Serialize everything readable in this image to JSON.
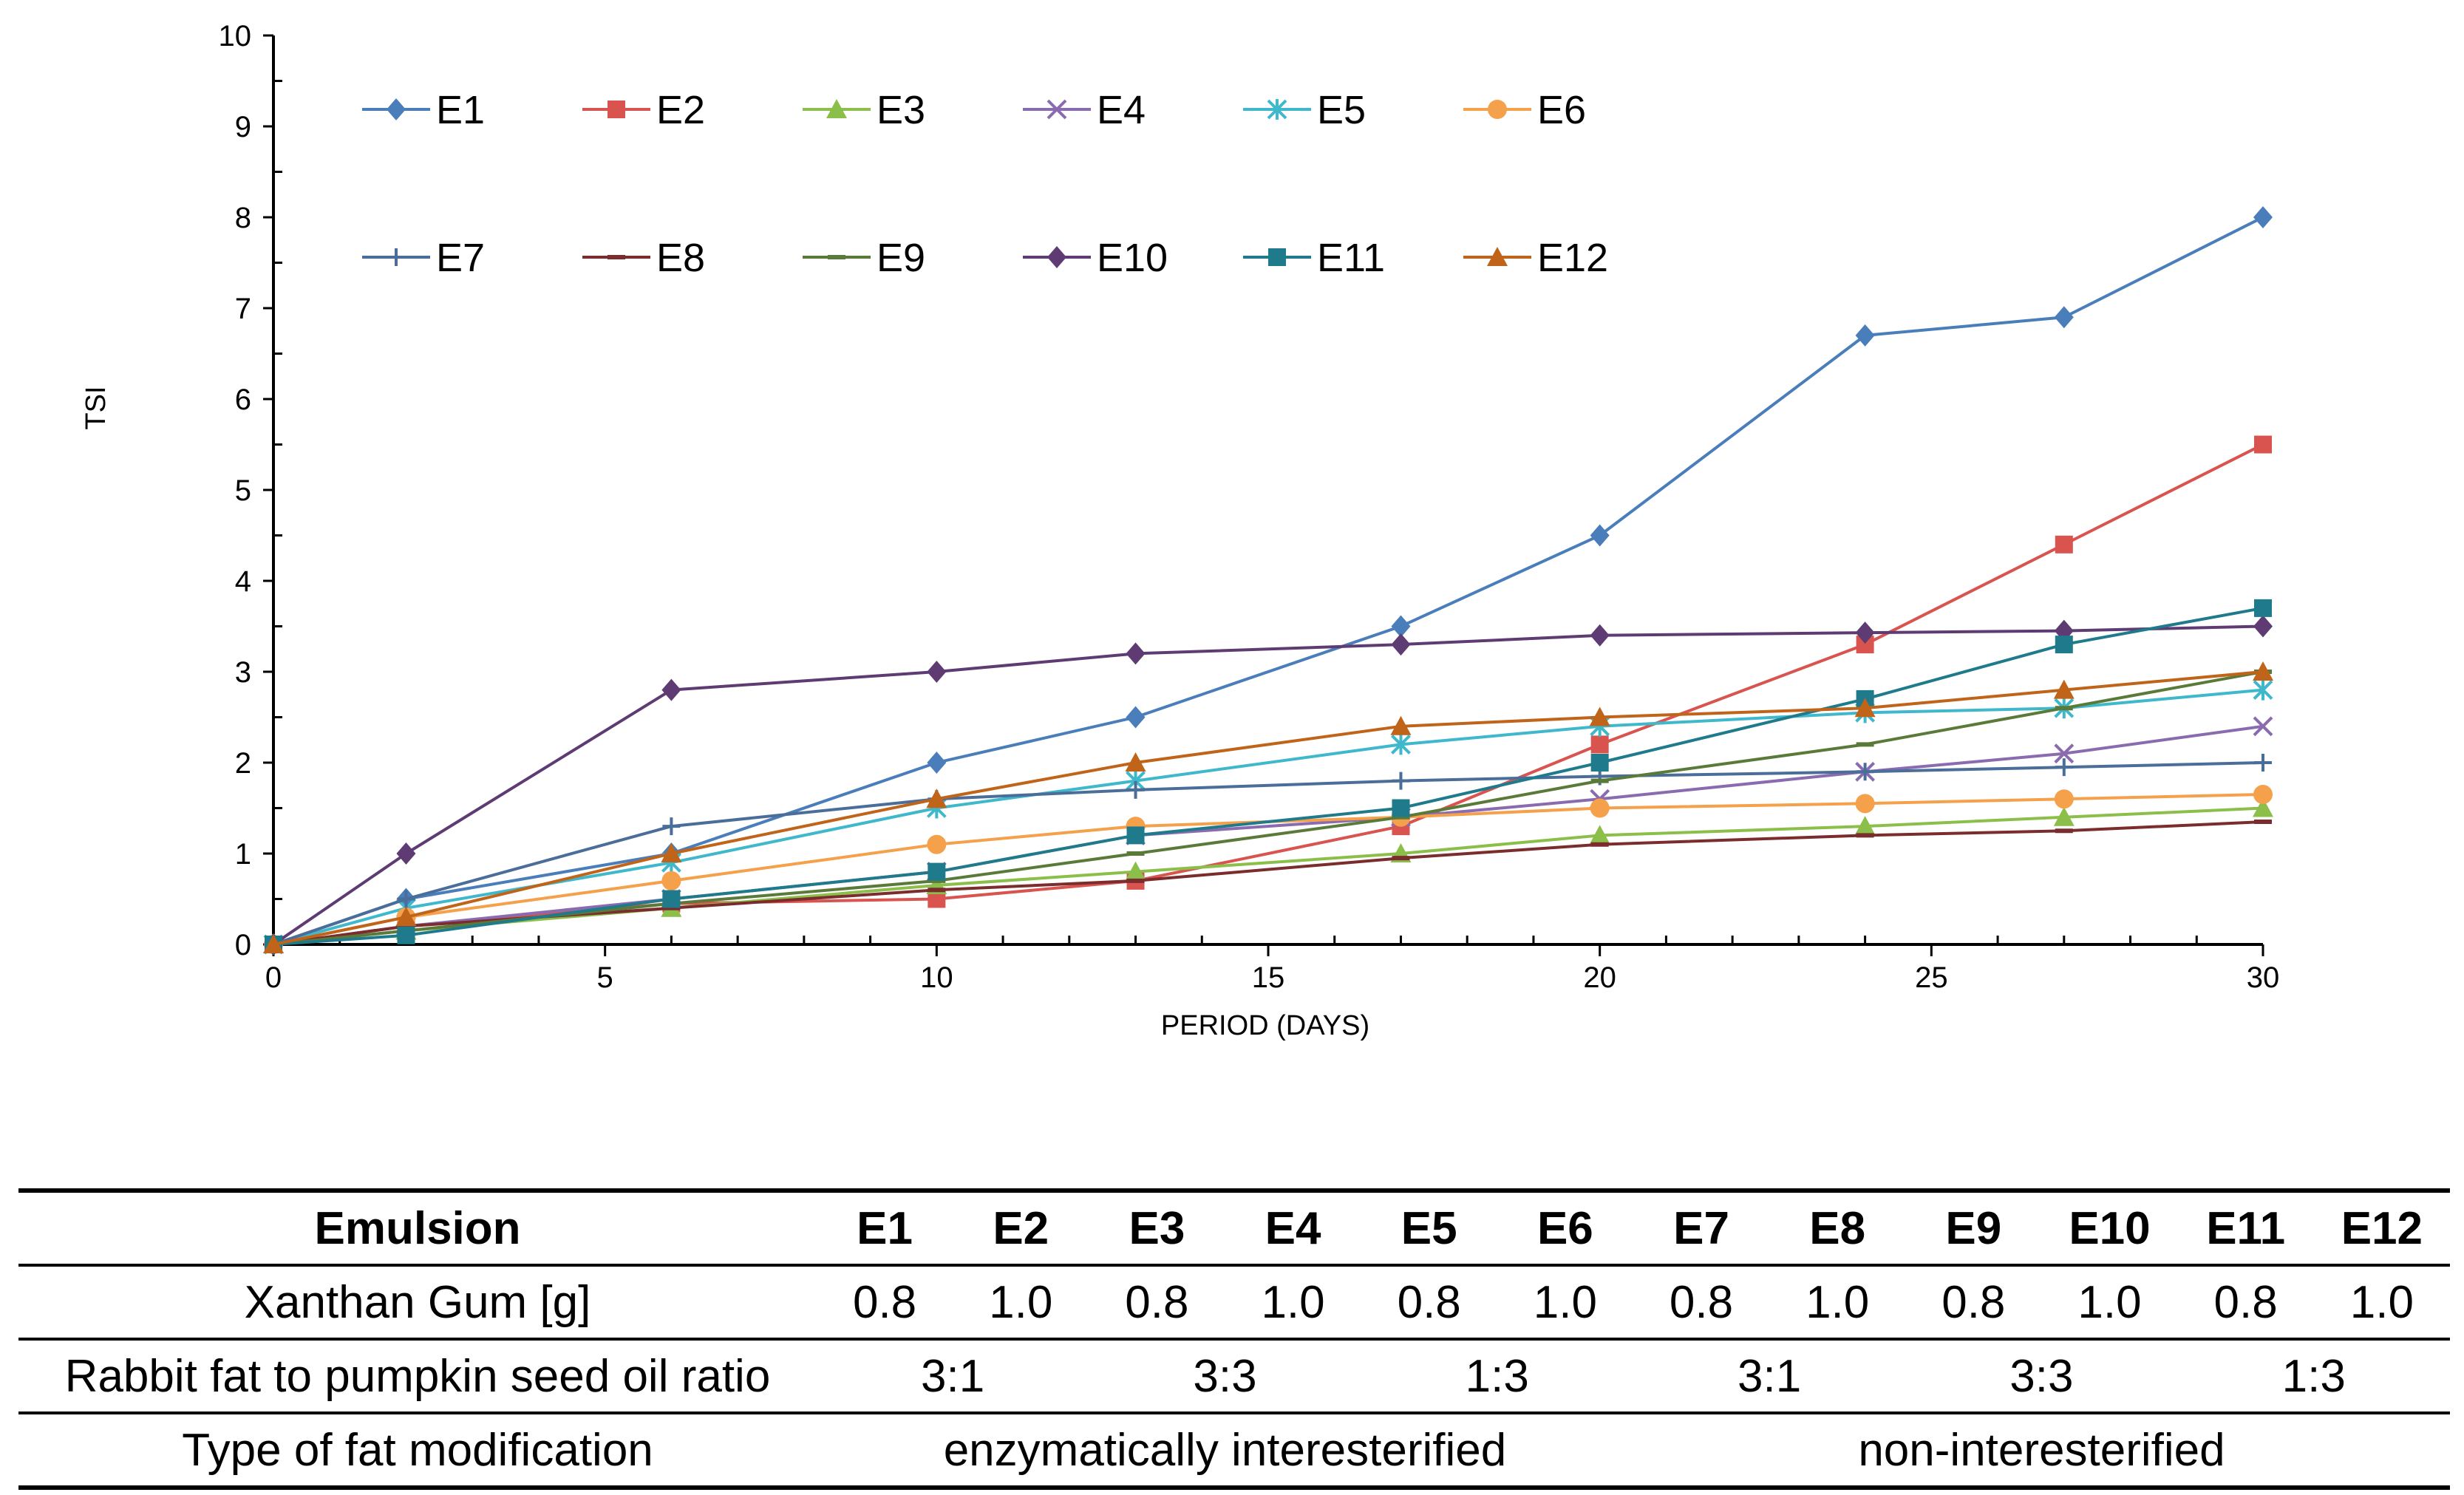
{
  "chart_data": {
    "type": "line",
    "title": "",
    "xlabel": "PERIOD (DAYS)",
    "ylabel": "TSI",
    "xlim": [
      0,
      30
    ],
    "ylim": [
      0,
      10
    ],
    "xticks": [
      0,
      5,
      10,
      15,
      20,
      25,
      30
    ],
    "yticks": [
      0,
      1,
      2,
      3,
      4,
      5,
      6,
      7,
      8,
      9,
      10
    ],
    "grid": false,
    "legend_position": "top-left",
    "x": [
      0,
      2,
      6,
      10,
      13,
      17,
      20,
      24,
      27,
      30
    ],
    "series": [
      {
        "name": "E1",
        "color": "#4a7ebb",
        "marker": "diamond",
        "values": [
          0,
          0.5,
          1.0,
          2.0,
          2.5,
          3.5,
          4.5,
          6.7,
          6.9,
          8.0
        ]
      },
      {
        "name": "E2",
        "color": "#d9534f",
        "marker": "square",
        "values": [
          0,
          0.2,
          0.45,
          0.5,
          0.7,
          1.3,
          2.2,
          3.3,
          4.4,
          5.5
        ]
      },
      {
        "name": "E3",
        "color": "#8bbf4a",
        "marker": "triangle",
        "values": [
          0,
          0.15,
          0.4,
          0.65,
          0.8,
          1.0,
          1.2,
          1.3,
          1.4,
          1.5
        ]
      },
      {
        "name": "E4",
        "color": "#8a6bb0",
        "marker": "x",
        "values": [
          0,
          0.2,
          0.5,
          0.8,
          1.2,
          1.4,
          1.6,
          1.9,
          2.1,
          2.4
        ]
      },
      {
        "name": "E5",
        "color": "#3fb8cc",
        "marker": "star",
        "values": [
          0,
          0.4,
          0.9,
          1.5,
          1.8,
          2.2,
          2.4,
          2.55,
          2.6,
          2.8
        ]
      },
      {
        "name": "E6",
        "color": "#f5a04a",
        "marker": "circle",
        "values": [
          0,
          0.3,
          0.7,
          1.1,
          1.3,
          1.4,
          1.5,
          1.55,
          1.6,
          1.65
        ]
      },
      {
        "name": "E7",
        "color": "#4a6d99",
        "marker": "plus",
        "values": [
          0,
          0.5,
          1.3,
          1.6,
          1.7,
          1.8,
          1.85,
          1.9,
          1.95,
          2.0
        ]
      },
      {
        "name": "E8",
        "color": "#7b2c2c",
        "marker": "dash",
        "values": [
          0,
          0.2,
          0.4,
          0.6,
          0.7,
          0.95,
          1.1,
          1.2,
          1.25,
          1.35
        ]
      },
      {
        "name": "E9",
        "color": "#5a7a3a",
        "marker": "dash",
        "values": [
          0,
          0.15,
          0.45,
          0.7,
          1.0,
          1.4,
          1.8,
          2.2,
          2.6,
          3.0
        ]
      },
      {
        "name": "E10",
        "color": "#5e3b73",
        "marker": "diamond",
        "values": [
          0,
          1.0,
          2.8,
          3.0,
          3.2,
          3.3,
          3.4,
          3.43,
          3.45,
          3.5
        ]
      },
      {
        "name": "E11",
        "color": "#1f7a8c",
        "marker": "square",
        "values": [
          0,
          0.1,
          0.5,
          0.8,
          1.2,
          1.5,
          2.0,
          2.7,
          3.3,
          3.7
        ]
      },
      {
        "name": "E12",
        "color": "#c0641a",
        "marker": "triangle",
        "values": [
          0,
          0.3,
          1.0,
          1.6,
          2.0,
          2.4,
          2.5,
          2.6,
          2.8,
          3.0
        ]
      }
    ]
  },
  "table": {
    "header_label": "Emulsion",
    "emulsions": [
      "E1",
      "E2",
      "E3",
      "E4",
      "E5",
      "E6",
      "E7",
      "E8",
      "E9",
      "E10",
      "E11",
      "E12"
    ],
    "xanthan_label": "Xanthan Gum [g]",
    "xanthan_values": [
      "0.8",
      "1.0",
      "0.8",
      "1.0",
      "0.8",
      "1.0",
      "0.8",
      "1.0",
      "0.8",
      "1.0",
      "0.8",
      "1.0"
    ],
    "ratio_label": "Rabbit fat to pumpkin seed oil ratio",
    "ratios": [
      "3:1",
      "3:3",
      "1:3",
      "3:1",
      "3:3",
      "1:3"
    ],
    "modification_label": "Type of fat modification",
    "modifications": [
      "enzymatically interesterified",
      "non-interesterified"
    ]
  }
}
